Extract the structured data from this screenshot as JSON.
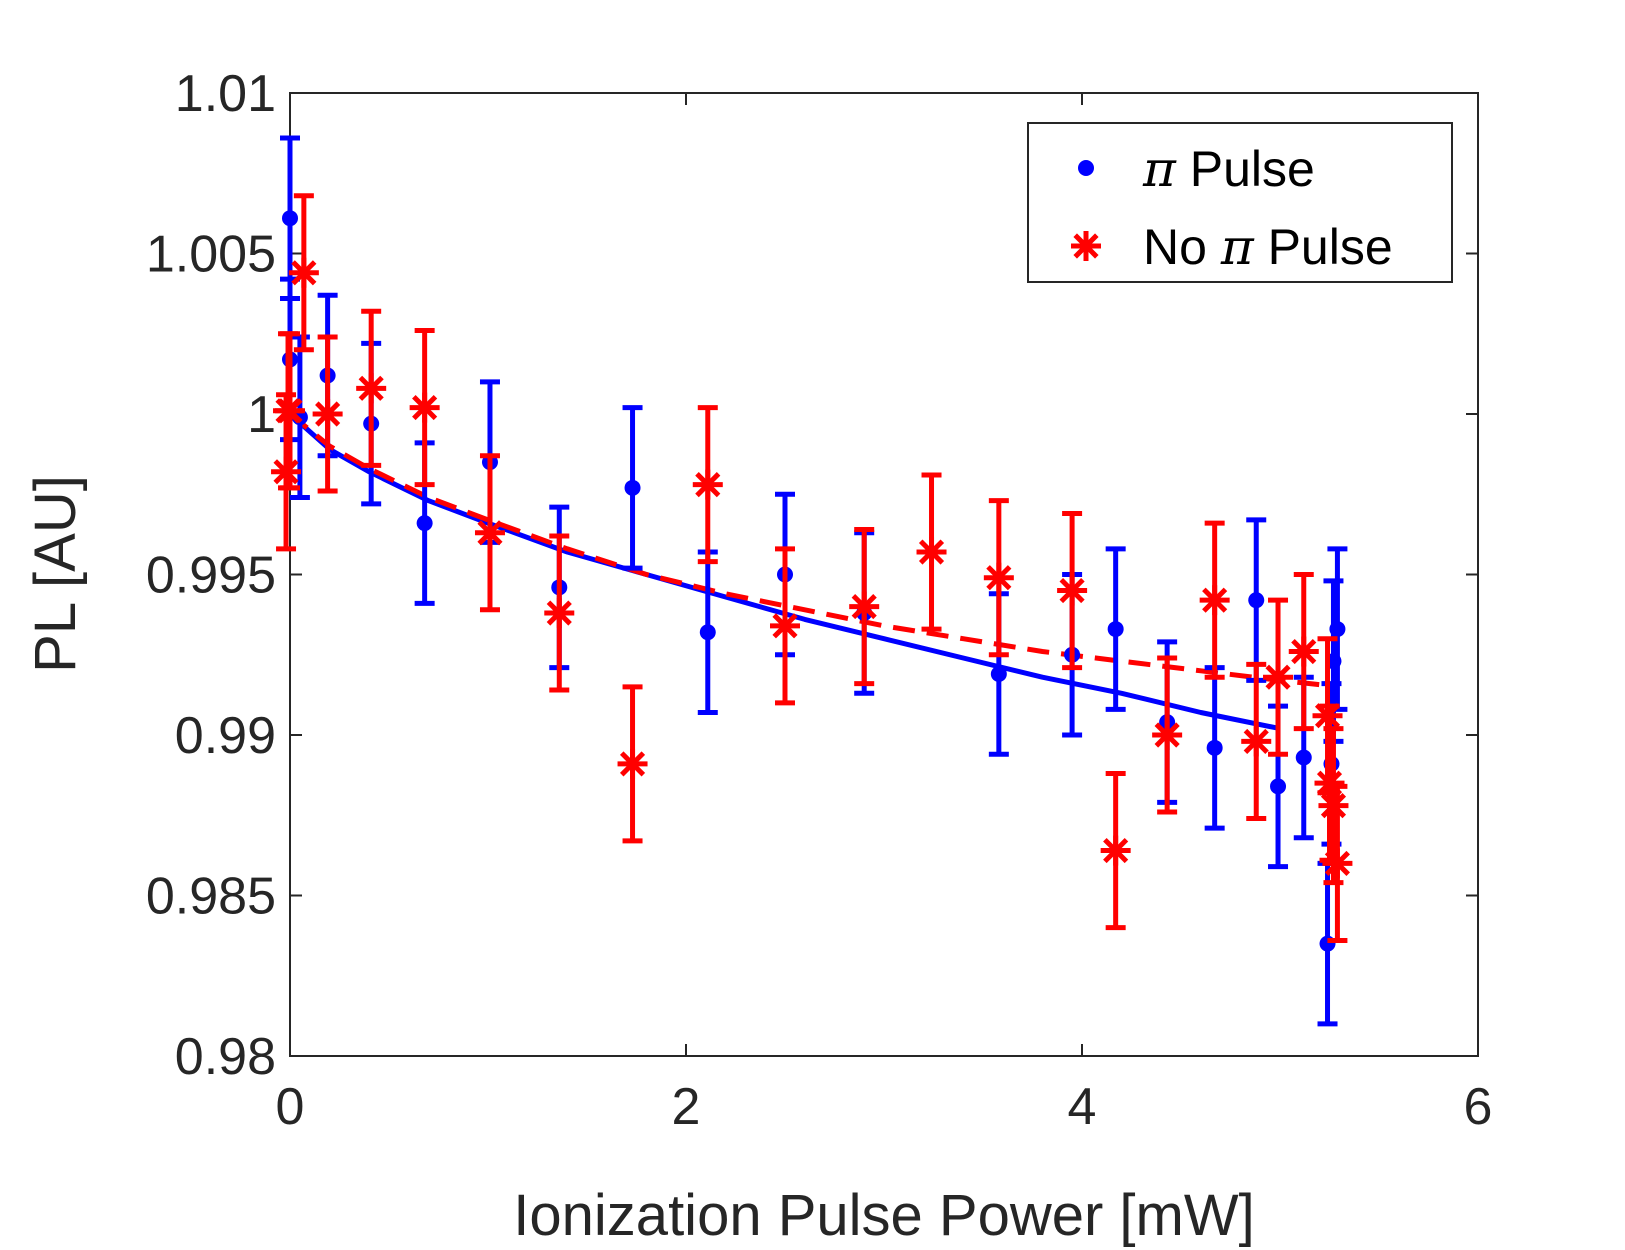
{
  "chart_data": {
    "type": "scatter",
    "title": "",
    "xlabel": "Ionization Pulse Power [mW]",
    "ylabel": "PL [AU]",
    "xlim": [
      0,
      6
    ],
    "ylim": [
      0.98,
      1.01
    ],
    "xticks": [
      0,
      2,
      4,
      6
    ],
    "xtick_labels": [
      "0",
      "2",
      "4",
      "6"
    ],
    "yticks": [
      0.98,
      0.985,
      0.99,
      0.995,
      1.0,
      1.005,
      1.01
    ],
    "ytick_labels": [
      "0.98",
      "0.985",
      "0.99",
      "0.995",
      "1",
      "1.005",
      "1.01"
    ],
    "grid": false,
    "legend_position": "top-right",
    "series": [
      {
        "name": "π Pulse",
        "legend_prefix": "",
        "legend_symbol": "π",
        "legend_suffix": " Pulse",
        "marker": "dot",
        "color": "#0000ff",
        "points": [
          {
            "x": 0.0,
            "y": 1.0061,
            "err": 0.0025
          },
          {
            "x": 0.0,
            "y": 1.0017,
            "err": 0.0025
          },
          {
            "x": 0.05,
            "y": 0.9999,
            "err": 0.0025
          },
          {
            "x": 0.19,
            "y": 1.0012,
            "err": 0.0025
          },
          {
            "x": 0.41,
            "y": 0.9997,
            "err": 0.0025
          },
          {
            "x": 0.68,
            "y": 0.9966,
            "err": 0.0025
          },
          {
            "x": 1.01,
            "y": 0.9985,
            "err": 0.0025
          },
          {
            "x": 1.36,
            "y": 0.9946,
            "err": 0.0025
          },
          {
            "x": 1.73,
            "y": 0.9977,
            "err": 0.0025
          },
          {
            "x": 2.11,
            "y": 0.9932,
            "err": 0.0025
          },
          {
            "x": 2.5,
            "y": 0.995,
            "err": 0.0025
          },
          {
            "x": 2.9,
            "y": 0.9938,
            "err": 0.0025
          },
          {
            "x": 3.58,
            "y": 0.9919,
            "err": 0.0025
          },
          {
            "x": 3.95,
            "y": 0.9925,
            "err": 0.0025
          },
          {
            "x": 4.17,
            "y": 0.9933,
            "err": 0.0025
          },
          {
            "x": 4.43,
            "y": 0.9904,
            "err": 0.0025
          },
          {
            "x": 4.67,
            "y": 0.9896,
            "err": 0.0025
          },
          {
            "x": 4.88,
            "y": 0.9942,
            "err": 0.0025
          },
          {
            "x": 4.99,
            "y": 0.9884,
            "err": 0.0025
          },
          {
            "x": 5.12,
            "y": 0.9893,
            "err": 0.0025
          },
          {
            "x": 5.24,
            "y": 0.9835,
            "err": 0.0025
          },
          {
            "x": 5.26,
            "y": 0.9891,
            "err": 0.0025
          },
          {
            "x": 5.27,
            "y": 0.9923,
            "err": 0.0025
          },
          {
            "x": 5.29,
            "y": 0.9933,
            "err": 0.0025
          }
        ]
      },
      {
        "name": "No π Pulse",
        "legend_prefix": "No ",
        "legend_symbol": "π",
        "legend_suffix": " Pulse",
        "marker": "asterisk",
        "color": "#ff0000",
        "points": [
          {
            "x": -0.02,
            "y": 0.9982,
            "err": 0.0024
          },
          {
            "x": -0.01,
            "y": 1.0001,
            "err": 0.0024
          },
          {
            "x": 0.0,
            "y": 1.0001,
            "err": 0.0024
          },
          {
            "x": 0.07,
            "y": 1.0044,
            "err": 0.0024
          },
          {
            "x": 0.19,
            "y": 1.0,
            "err": 0.0024
          },
          {
            "x": 0.41,
            "y": 1.0008,
            "err": 0.0024
          },
          {
            "x": 0.68,
            "y": 1.0002,
            "err": 0.0024
          },
          {
            "x": 1.01,
            "y": 0.9963,
            "err": 0.0024
          },
          {
            "x": 1.36,
            "y": 0.9938,
            "err": 0.0024
          },
          {
            "x": 1.73,
            "y": 0.9891,
            "err": 0.0024
          },
          {
            "x": 2.11,
            "y": 0.9978,
            "err": 0.0024
          },
          {
            "x": 2.5,
            "y": 0.9934,
            "err": 0.0024
          },
          {
            "x": 2.9,
            "y": 0.994,
            "err": 0.0024
          },
          {
            "x": 3.24,
            "y": 0.9957,
            "err": 0.0024
          },
          {
            "x": 3.58,
            "y": 0.9949,
            "err": 0.0024
          },
          {
            "x": 3.95,
            "y": 0.9945,
            "err": 0.0024
          },
          {
            "x": 4.17,
            "y": 0.9864,
            "err": 0.0024
          },
          {
            "x": 4.43,
            "y": 0.99,
            "err": 0.0024
          },
          {
            "x": 4.67,
            "y": 0.9942,
            "err": 0.0024
          },
          {
            "x": 4.88,
            "y": 0.9898,
            "err": 0.0024
          },
          {
            "x": 4.99,
            "y": 0.9918,
            "err": 0.0024
          },
          {
            "x": 5.12,
            "y": 0.9926,
            "err": 0.0024
          },
          {
            "x": 5.24,
            "y": 0.9906,
            "err": 0.0024
          },
          {
            "x": 5.25,
            "y": 0.9885,
            "err": 0.0024
          },
          {
            "x": 5.27,
            "y": 0.9878,
            "err": 0.0024
          },
          {
            "x": 5.29,
            "y": 0.986,
            "err": 0.0024
          }
        ]
      }
    ],
    "fits": [
      {
        "name": "π Pulse fit",
        "style": "solid",
        "color": "#0000ff",
        "x": [
          0.0,
          0.2,
          0.4,
          0.7,
          1.0,
          1.4,
          1.8,
          2.2,
          2.6,
          3.0,
          3.4,
          3.8,
          4.2,
          4.6,
          5.0
        ],
        "y": [
          1.0,
          0.9989,
          0.9982,
          0.9973,
          0.9966,
          0.9957,
          0.995,
          0.9943,
          0.9936,
          0.993,
          0.9924,
          0.9918,
          0.9913,
          0.9907,
          0.9902
        ]
      },
      {
        "name": "No π Pulse fit",
        "style": "dashed",
        "color": "#ff0000",
        "x": [
          0.0,
          0.2,
          0.4,
          0.7,
          1.0,
          1.4,
          1.8,
          2.2,
          2.6,
          3.0,
          3.4,
          3.8,
          4.2,
          4.6,
          5.0,
          5.3
        ],
        "y": [
          1.0,
          0.999,
          0.9983,
          0.9974,
          0.9967,
          0.9958,
          0.995,
          0.9944,
          0.9939,
          0.9934,
          0.993,
          0.9926,
          0.9923,
          0.992,
          0.9917,
          0.9915
        ]
      }
    ]
  }
}
